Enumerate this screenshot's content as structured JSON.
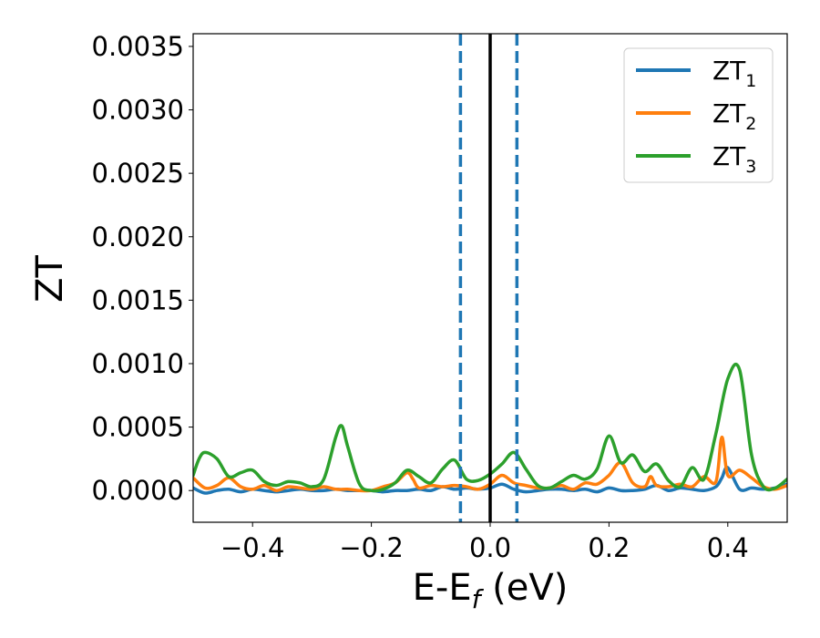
{
  "chart_data": {
    "type": "line",
    "xlabel_main": "E-E",
    "xlabel_sub": "f",
    "xlabel_unit": " (eV)",
    "ylabel": "ZT",
    "xlim": [
      -0.5,
      0.5
    ],
    "ylim": [
      -0.00025,
      0.0036
    ],
    "xticks": [
      -0.4,
      -0.2,
      0.0,
      0.2,
      0.4
    ],
    "xtick_labels": [
      "−0.4",
      "−0.2",
      "0.0",
      "0.2",
      "0.4"
    ],
    "yticks": [
      0.0,
      0.0005,
      0.001,
      0.0015,
      0.002,
      0.0025,
      0.003,
      0.0035
    ],
    "ytick_labels": [
      "0.0000",
      "0.0005",
      "0.0010",
      "0.0015",
      "0.0020",
      "0.0025",
      "0.0030",
      "0.0035"
    ],
    "grid": false,
    "legend_position": "top-right",
    "vlines": [
      {
        "x": -0.05,
        "style": "dashed",
        "color": "#1f77b4"
      },
      {
        "x": 0.045,
        "style": "dashed",
        "color": "#1f77b4"
      },
      {
        "x": 0.0,
        "style": "solid",
        "color": "#000000"
      }
    ],
    "series": [
      {
        "name": "ZT",
        "subscript": "1",
        "color": "#1f77b4",
        "x": [
          -0.5,
          -0.48,
          -0.46,
          -0.44,
          -0.42,
          -0.4,
          -0.38,
          -0.36,
          -0.34,
          -0.32,
          -0.3,
          -0.28,
          -0.26,
          -0.24,
          -0.22,
          -0.2,
          -0.18,
          -0.16,
          -0.14,
          -0.12,
          -0.1,
          -0.08,
          -0.06,
          -0.04,
          -0.02,
          0.0,
          0.02,
          0.04,
          0.06,
          0.08,
          0.1,
          0.12,
          0.14,
          0.16,
          0.18,
          0.2,
          0.22,
          0.24,
          0.26,
          0.28,
          0.3,
          0.32,
          0.34,
          0.36,
          0.38,
          0.39,
          0.4,
          0.42,
          0.44,
          0.46,
          0.48,
          0.5
        ],
        "y": [
          2e-05,
          -2e-05,
          0.0,
          1e-05,
          -1e-05,
          1e-05,
          0.0,
          -1e-05,
          0.0,
          1e-05,
          0.0,
          0.0,
          1e-05,
          0.0,
          0.0,
          0.0,
          -1e-05,
          0.0,
          0.0,
          1e-05,
          0.0,
          3e-05,
          1e-05,
          2e-05,
          1e-05,
          2e-05,
          5e-05,
          1e-05,
          -1e-05,
          0.0,
          1e-05,
          1e-05,
          0.0,
          1e-05,
          -1e-05,
          2e-05,
          0.0,
          0.0,
          1e-05,
          4e-05,
          0.0,
          2e-05,
          1e-05,
          0.0,
          3e-05,
          0.0001,
          0.00018,
          1e-05,
          2e-05,
          1e-05,
          2e-05,
          5e-05
        ]
      },
      {
        "name": "ZT",
        "subscript": "2",
        "color": "#ff7f0e",
        "x": [
          -0.5,
          -0.48,
          -0.46,
          -0.44,
          -0.42,
          -0.4,
          -0.38,
          -0.36,
          -0.34,
          -0.32,
          -0.3,
          -0.28,
          -0.26,
          -0.24,
          -0.22,
          -0.2,
          -0.18,
          -0.16,
          -0.14,
          -0.13,
          -0.12,
          -0.1,
          -0.08,
          -0.06,
          -0.04,
          -0.02,
          0.0,
          0.02,
          0.04,
          0.06,
          0.08,
          0.1,
          0.12,
          0.14,
          0.16,
          0.18,
          0.2,
          0.22,
          0.24,
          0.26,
          0.27,
          0.28,
          0.3,
          0.32,
          0.34,
          0.36,
          0.38,
          0.39,
          0.4,
          0.42,
          0.44,
          0.46,
          0.48,
          0.5
        ],
        "y": [
          0.0001,
          2e-05,
          4e-05,
          0.0001,
          3e-05,
          1e-05,
          4e-05,
          0.0,
          3e-05,
          2e-05,
          1e-05,
          3e-05,
          1e-05,
          1e-05,
          0.0,
          0.0,
          3e-05,
          6e-05,
          0.00014,
          9e-05,
          2e-05,
          4e-05,
          3e-05,
          4e-05,
          3e-05,
          1e-05,
          5e-05,
          0.00012,
          6e-05,
          4e-05,
          2e-05,
          2e-05,
          4e-05,
          1e-05,
          6e-05,
          5e-05,
          0.00012,
          0.00022,
          6e-05,
          3e-05,
          0.00011,
          4e-05,
          3e-05,
          5e-05,
          3e-05,
          0.00011,
          7e-05,
          0.00042,
          0.00012,
          0.00016,
          0.0001,
          3e-05,
          1e-05,
          4e-05
        ]
      },
      {
        "name": "ZT",
        "subscript": "3",
        "color": "#2ca02c",
        "x": [
          -0.5,
          -0.49,
          -0.48,
          -0.46,
          -0.44,
          -0.42,
          -0.4,
          -0.38,
          -0.36,
          -0.34,
          -0.32,
          -0.3,
          -0.28,
          -0.26,
          -0.25,
          -0.24,
          -0.22,
          -0.2,
          -0.18,
          -0.16,
          -0.14,
          -0.12,
          -0.1,
          -0.08,
          -0.06,
          -0.04,
          -0.02,
          0.0,
          0.02,
          0.04,
          0.06,
          0.08,
          0.1,
          0.12,
          0.14,
          0.16,
          0.18,
          0.2,
          0.22,
          0.24,
          0.26,
          0.28,
          0.3,
          0.32,
          0.34,
          0.36,
          0.38,
          0.4,
          0.42,
          0.44,
          0.46,
          0.48,
          0.5
        ],
        "y": [
          0.00012,
          0.00025,
          0.0003,
          0.00025,
          0.00011,
          0.00014,
          0.00016,
          7e-05,
          4e-05,
          7e-05,
          6e-05,
          3e-05,
          9e-05,
          0.00042,
          0.00051,
          0.00035,
          5e-05,
          0.0,
          1e-05,
          6e-05,
          0.00016,
          0.00011,
          6e-05,
          0.00017,
          0.00024,
          9e-05,
          8e-05,
          0.00013,
          0.00021,
          0.0003,
          0.00017,
          4e-05,
          2e-05,
          7e-05,
          0.00012,
          9e-05,
          0.00017,
          0.00043,
          0.00022,
          0.00028,
          0.00015,
          0.00021,
          8e-05,
          3e-05,
          0.00018,
          9e-05,
          0.00045,
          0.00088,
          0.00095,
          0.00028,
          3e-05,
          2e-05,
          9e-05
        ]
      }
    ]
  }
}
